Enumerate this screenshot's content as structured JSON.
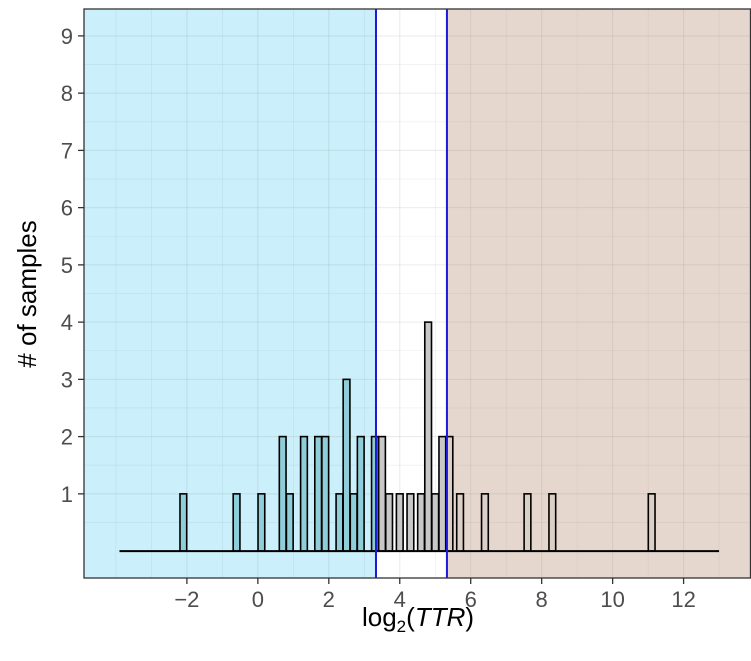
{
  "chart_data": {
    "type": "bar",
    "subtype": "histogram",
    "xlabel": "log2(TTR)",
    "xlabel_parts": {
      "pre": "log",
      "sub": "2",
      "open": "(",
      "var": "TTR",
      "close": ")"
    },
    "ylabel": "# of samples",
    "xlim": [
      -4.9,
      13.9
    ],
    "ylim": [
      -0.47,
      9.47
    ],
    "x_ticks": [
      -2,
      0,
      2,
      4,
      6,
      8,
      10,
      12
    ],
    "x_tick_labels": [
      "−2",
      "0",
      "2",
      "4",
      "6",
      "8",
      "10",
      "12"
    ],
    "y_ticks": [
      1,
      2,
      3,
      4,
      5,
      6,
      7,
      8,
      9
    ],
    "y_tick_labels": [
      "1",
      "2",
      "3",
      "4",
      "5",
      "6",
      "7",
      "8",
      "9"
    ],
    "bin_width": 0.1897,
    "bins_x_start": -3.9,
    "bins_x_end": 13.0,
    "bars": [
      {
        "x": -2.1,
        "count": 1
      },
      {
        "x": -0.6,
        "count": 1
      },
      {
        "x": 0.1,
        "count": 1
      },
      {
        "x": 0.7,
        "count": 2
      },
      {
        "x": 0.9,
        "count": 1
      },
      {
        "x": 1.3,
        "count": 2
      },
      {
        "x": 1.7,
        "count": 2
      },
      {
        "x": 1.9,
        "count": 2
      },
      {
        "x": 2.3,
        "count": 1
      },
      {
        "x": 2.5,
        "count": 3
      },
      {
        "x": 2.7,
        "count": 1
      },
      {
        "x": 2.9,
        "count": 2
      },
      {
        "x": 3.3,
        "count": 2
      },
      {
        "x": 3.5,
        "count": 2
      },
      {
        "x": 3.7,
        "count": 1
      },
      {
        "x": 4.0,
        "count": 1
      },
      {
        "x": 4.3,
        "count": 1
      },
      {
        "x": 4.6,
        "count": 1
      },
      {
        "x": 4.8,
        "count": 4
      },
      {
        "x": 5.0,
        "count": 1
      },
      {
        "x": 5.2,
        "count": 2
      },
      {
        "x": 5.4,
        "count": 2
      },
      {
        "x": 5.7,
        "count": 1
      },
      {
        "x": 6.4,
        "count": 1
      },
      {
        "x": 7.6,
        "count": 1
      },
      {
        "x": 8.3,
        "count": 1
      },
      {
        "x": 11.1,
        "count": 1
      }
    ],
    "regions": [
      {
        "x_from": -4.9,
        "x_to": 3.33,
        "color": "#cbeffb"
      },
      {
        "x_from": 5.33,
        "x_to": 13.9,
        "color": "#e6d7ce"
      }
    ],
    "vlines": [
      {
        "x": 3.33,
        "color": "#1a1adb"
      },
      {
        "x": 5.33,
        "color": "#1a1adb"
      }
    ],
    "bar_fill": "#c8c8c8",
    "bar_fill_left": "#8fcdd8",
    "bar_fill_right": "#dbcfc6",
    "bar_stroke": "#000000",
    "grid": true,
    "legend": "none"
  }
}
